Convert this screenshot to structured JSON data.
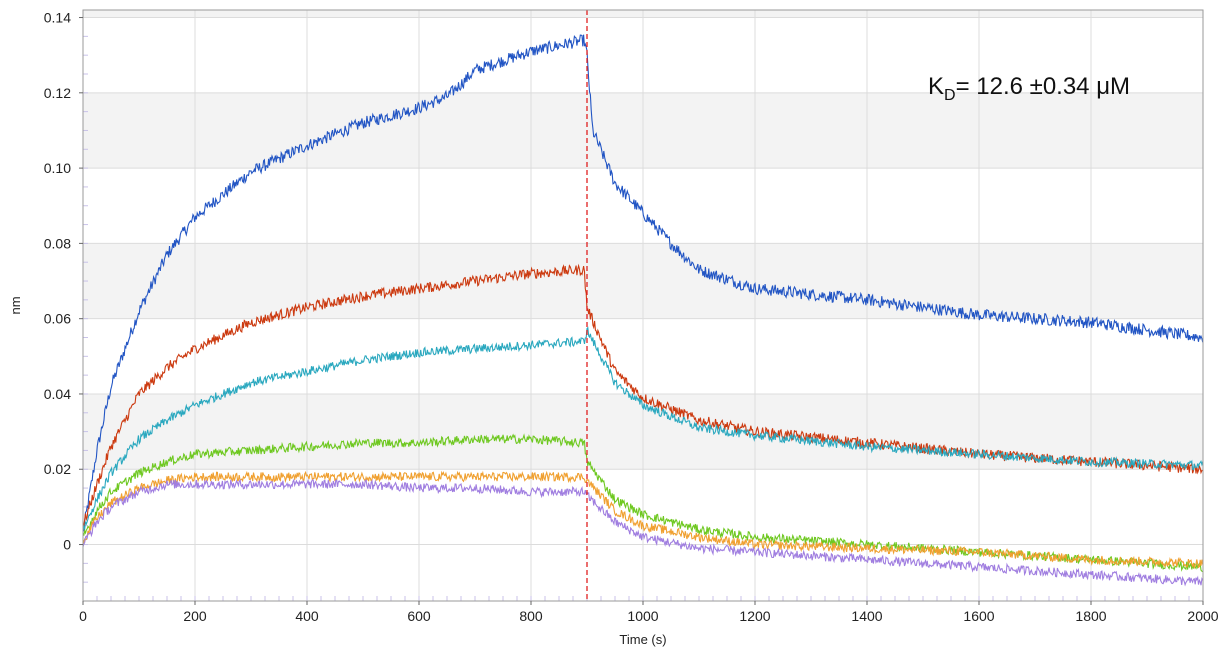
{
  "chart_data": {
    "type": "line",
    "xlabel": "Time (s)",
    "ylabel": "nm",
    "xlim": [
      0,
      2000
    ],
    "ylim": [
      -0.015,
      0.142
    ],
    "x_ticks": [
      0,
      200,
      400,
      600,
      800,
      1000,
      1200,
      1400,
      1600,
      1800,
      2000
    ],
    "y_ticks": [
      0,
      0.02,
      0.04,
      0.06,
      0.08,
      0.1,
      0.12,
      0.14
    ],
    "x_tick_labels": [
      "0",
      "200",
      "400",
      "600",
      "800",
      "1000",
      "1200",
      "1400",
      "1600",
      "1800",
      "2000"
    ],
    "y_tick_labels": [
      "0",
      "0.02",
      "0.04",
      "0.06",
      "0.08",
      "0.10",
      "0.12",
      "0.14"
    ],
    "grid": true,
    "banded_background": true,
    "vertical_marker": {
      "x": 900,
      "color": "#e02020",
      "style": "dashed"
    },
    "annotation": {
      "main": "K",
      "sub": "D",
      "rest": "= 12.6 ±0.34 μM"
    },
    "series": [
      {
        "color": "#2255c4",
        "points": [
          [
            0,
            0.003
          ],
          [
            25,
            0.025
          ],
          [
            50,
            0.042
          ],
          [
            100,
            0.062
          ],
          [
            150,
            0.077
          ],
          [
            200,
            0.087
          ],
          [
            300,
            0.099
          ],
          [
            400,
            0.106
          ],
          [
            500,
            0.112
          ],
          [
            600,
            0.116
          ],
          [
            650,
            0.119
          ],
          [
            680,
            0.123
          ],
          [
            700,
            0.126
          ],
          [
            800,
            0.131
          ],
          [
            895,
            0.134
          ],
          [
            900,
            0.13
          ],
          [
            910,
            0.11
          ],
          [
            950,
            0.096
          ],
          [
            1000,
            0.088
          ],
          [
            1050,
            0.08
          ],
          [
            1100,
            0.073
          ],
          [
            1200,
            0.068
          ],
          [
            1400,
            0.065
          ],
          [
            1600,
            0.061
          ],
          [
            1800,
            0.059
          ],
          [
            2000,
            0.055
          ]
        ]
      },
      {
        "color": "#cc3a10",
        "points": [
          [
            0,
            0.005
          ],
          [
            25,
            0.016
          ],
          [
            50,
            0.026
          ],
          [
            100,
            0.04
          ],
          [
            150,
            0.047
          ],
          [
            200,
            0.052
          ],
          [
            300,
            0.059
          ],
          [
            400,
            0.063
          ],
          [
            500,
            0.066
          ],
          [
            600,
            0.068
          ],
          [
            700,
            0.07
          ],
          [
            800,
            0.072
          ],
          [
            895,
            0.073
          ],
          [
            900,
            0.063
          ],
          [
            950,
            0.046
          ],
          [
            1000,
            0.039
          ],
          [
            1100,
            0.033
          ],
          [
            1200,
            0.03
          ],
          [
            1400,
            0.027
          ],
          [
            1600,
            0.024
          ],
          [
            1800,
            0.022
          ],
          [
            2000,
            0.02
          ]
        ]
      },
      {
        "color": "#2aa8bf",
        "points": [
          [
            0,
            0.004
          ],
          [
            25,
            0.012
          ],
          [
            50,
            0.019
          ],
          [
            100,
            0.028
          ],
          [
            150,
            0.033
          ],
          [
            200,
            0.037
          ],
          [
            300,
            0.043
          ],
          [
            400,
            0.046
          ],
          [
            500,
            0.049
          ],
          [
            600,
            0.051
          ],
          [
            700,
            0.052
          ],
          [
            800,
            0.053
          ],
          [
            895,
            0.054
          ],
          [
            900,
            0.057
          ],
          [
            950,
            0.043
          ],
          [
            1000,
            0.037
          ],
          [
            1100,
            0.031
          ],
          [
            1200,
            0.029
          ],
          [
            1400,
            0.026
          ],
          [
            1600,
            0.024
          ],
          [
            1800,
            0.022
          ],
          [
            2000,
            0.021
          ]
        ]
      },
      {
        "color": "#6ec820",
        "points": [
          [
            0,
            0.002
          ],
          [
            25,
            0.009
          ],
          [
            50,
            0.014
          ],
          [
            100,
            0.019
          ],
          [
            150,
            0.022
          ],
          [
            200,
            0.024
          ],
          [
            300,
            0.025
          ],
          [
            400,
            0.026
          ],
          [
            500,
            0.027
          ],
          [
            600,
            0.027
          ],
          [
            700,
            0.028
          ],
          [
            800,
            0.028
          ],
          [
            895,
            0.027
          ],
          [
            900,
            0.022
          ],
          [
            950,
            0.012
          ],
          [
            1000,
            0.008
          ],
          [
            1100,
            0.004
          ],
          [
            1200,
            0.002
          ],
          [
            1400,
            0.0
          ],
          [
            1600,
            -0.002
          ],
          [
            1800,
            -0.004
          ],
          [
            2000,
            -0.006
          ]
        ]
      },
      {
        "color": "#f0a030",
        "points": [
          [
            0,
            0.001
          ],
          [
            25,
            0.007
          ],
          [
            50,
            0.011
          ],
          [
            100,
            0.015
          ],
          [
            150,
            0.017
          ],
          [
            200,
            0.018
          ],
          [
            300,
            0.018
          ],
          [
            400,
            0.018
          ],
          [
            500,
            0.018
          ],
          [
            600,
            0.018
          ],
          [
            700,
            0.018
          ],
          [
            800,
            0.018
          ],
          [
            895,
            0.018
          ],
          [
            900,
            0.017
          ],
          [
            950,
            0.009
          ],
          [
            1000,
            0.005
          ],
          [
            1100,
            0.002
          ],
          [
            1200,
            0.0
          ],
          [
            1400,
            -0.001
          ],
          [
            1600,
            -0.002
          ],
          [
            1800,
            -0.004
          ],
          [
            2000,
            -0.005
          ]
        ]
      },
      {
        "color": "#a07ee0",
        "points": [
          [
            0,
            0.0
          ],
          [
            25,
            0.006
          ],
          [
            50,
            0.01
          ],
          [
            100,
            0.014
          ],
          [
            150,
            0.016
          ],
          [
            200,
            0.016
          ],
          [
            300,
            0.016
          ],
          [
            400,
            0.016
          ],
          [
            500,
            0.016
          ],
          [
            600,
            0.015
          ],
          [
            700,
            0.015
          ],
          [
            800,
            0.014
          ],
          [
            895,
            0.014
          ],
          [
            900,
            0.013
          ],
          [
            950,
            0.006
          ],
          [
            1000,
            0.002
          ],
          [
            1100,
            -0.001
          ],
          [
            1200,
            -0.002
          ],
          [
            1400,
            -0.004
          ],
          [
            1600,
            -0.006
          ],
          [
            1800,
            -0.008
          ],
          [
            2000,
            -0.01
          ]
        ]
      }
    ]
  }
}
